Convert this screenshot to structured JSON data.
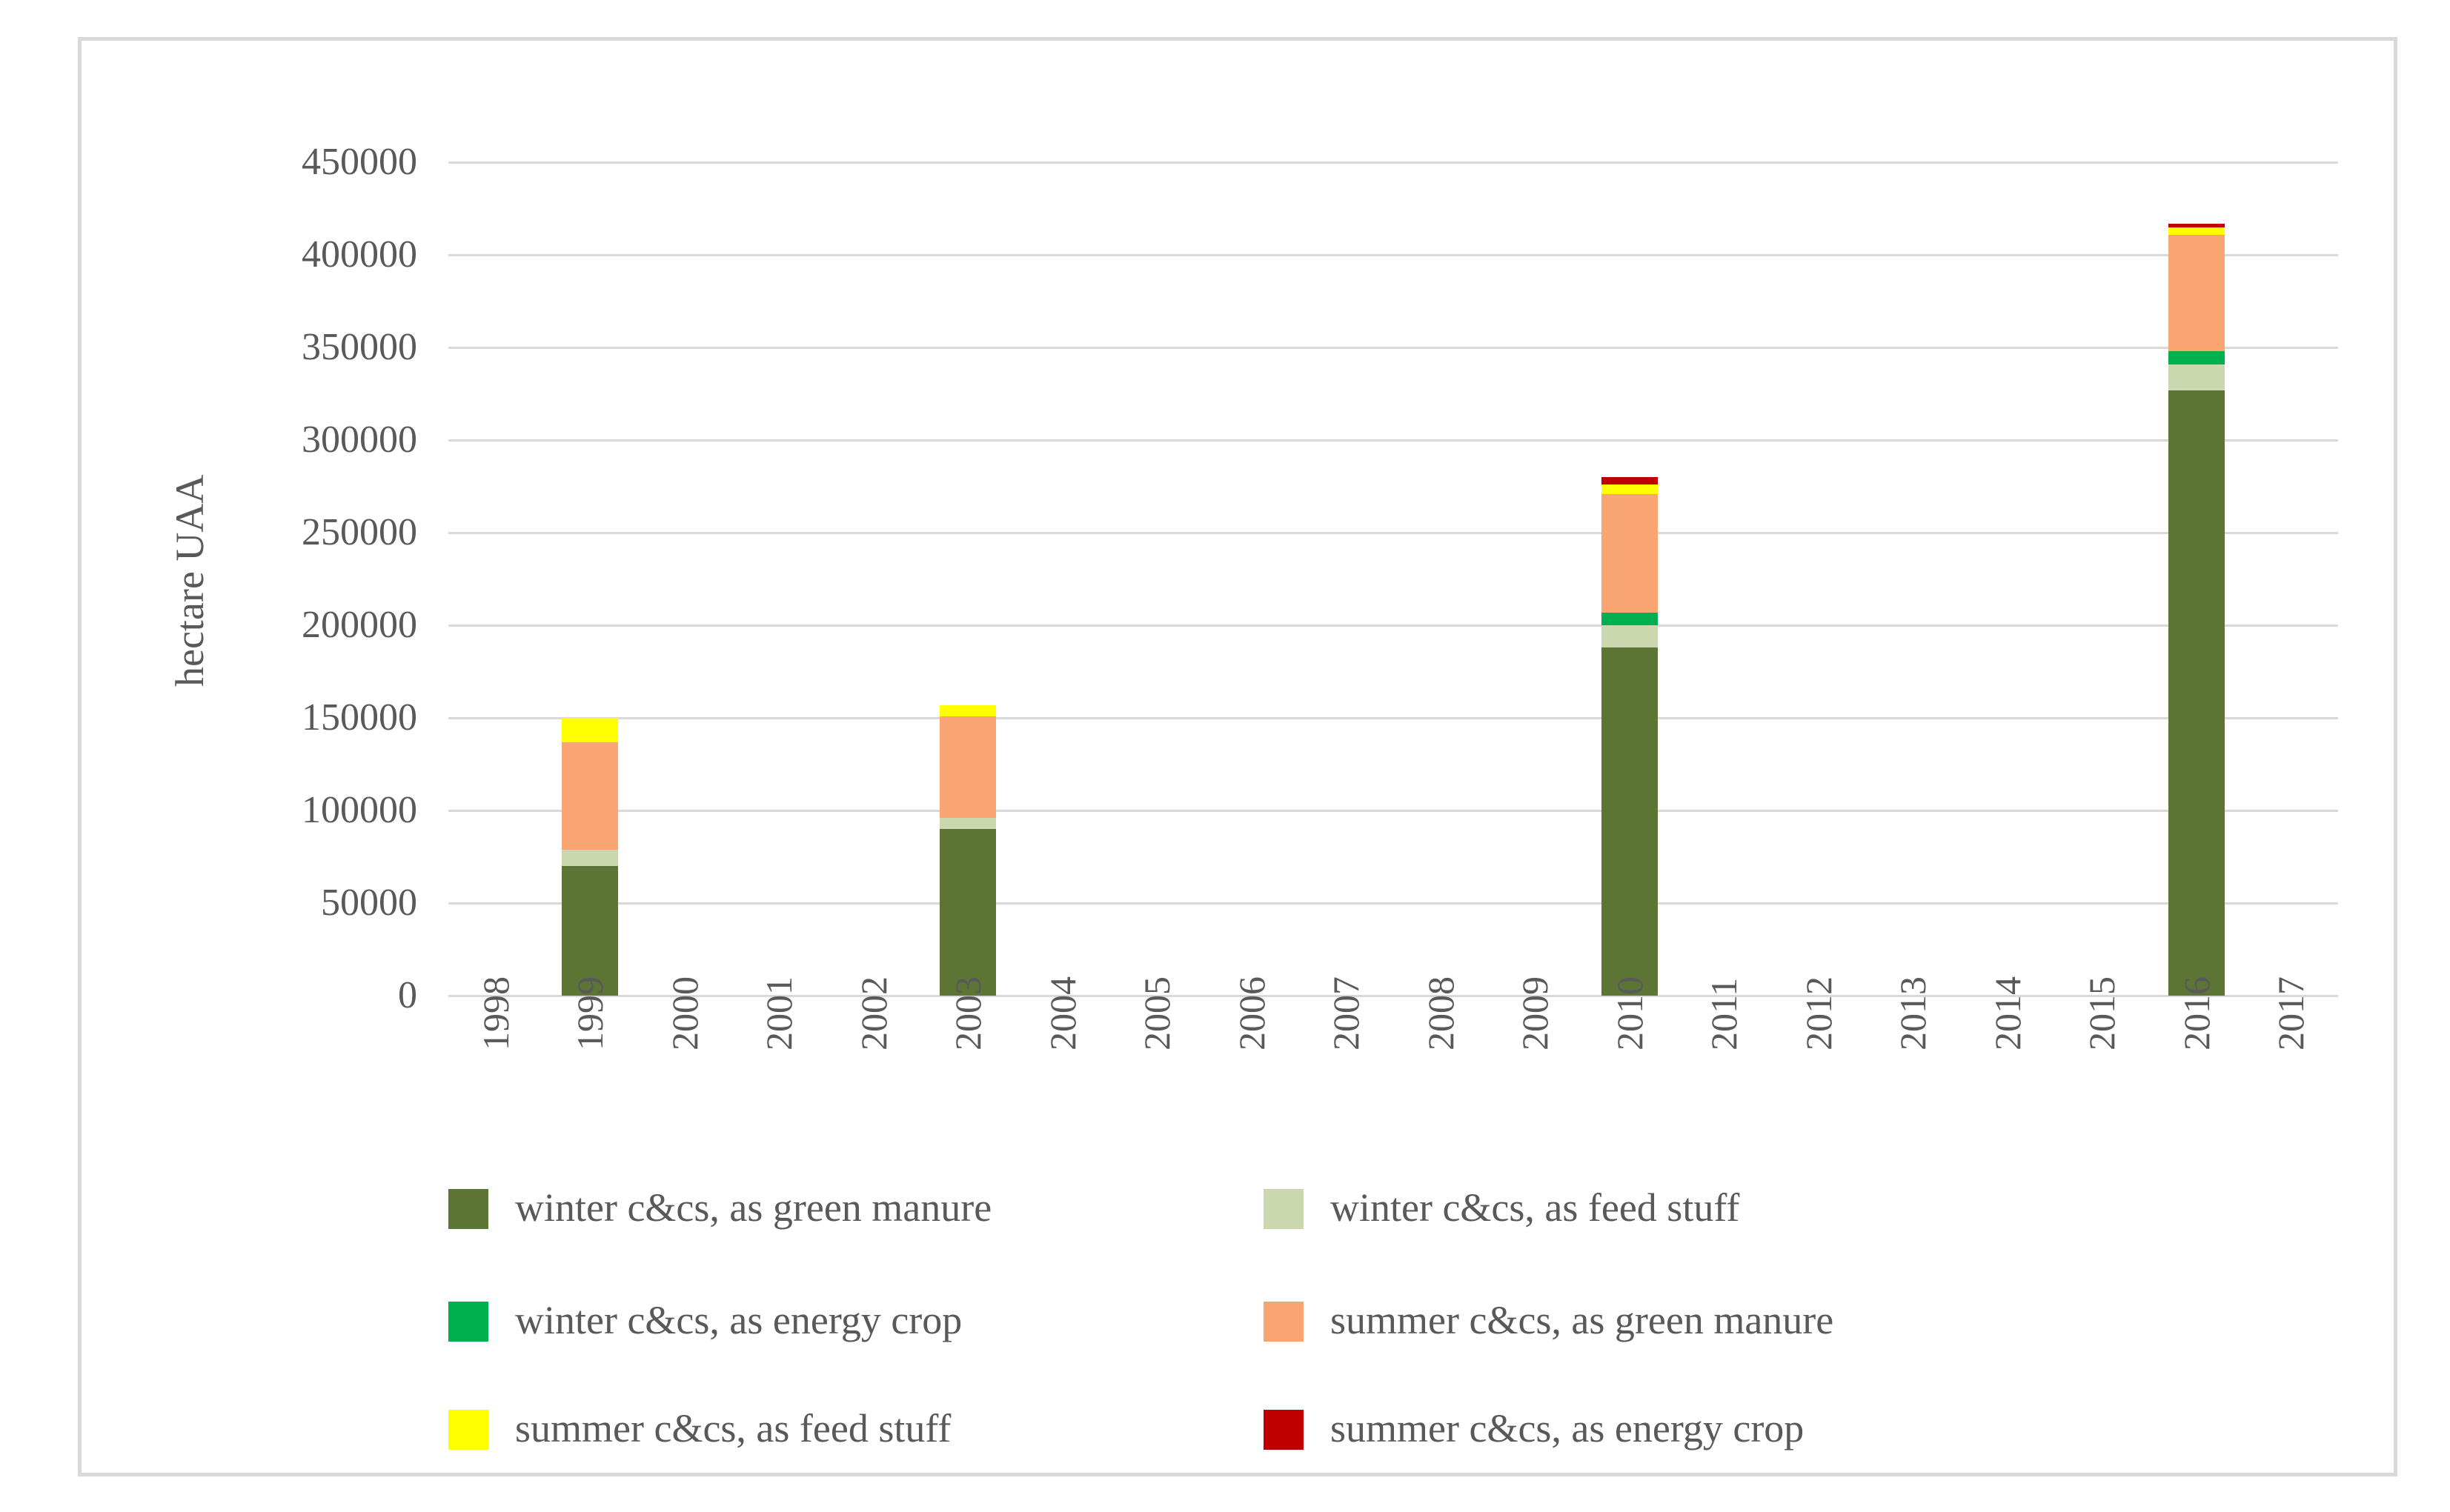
{
  "figure": {
    "y_axis_title": "hectare UAA"
  },
  "colors": {
    "grid": "#D9D9D9",
    "border": "#D9D9D9",
    "text": "#595959",
    "background": "#FFFFFF"
  },
  "chart_data": {
    "type": "bar",
    "stacked": true,
    "title": "",
    "xlabel": "",
    "ylabel": "hectare UAA",
    "ylim": [
      0,
      450000
    ],
    "y_tick_step": 50000,
    "y_tick_labels": [
      "0",
      "50000",
      "100000",
      "150000",
      "200000",
      "250000",
      "300000",
      "350000",
      "400000",
      "450000"
    ],
    "grid": "horizontal",
    "legend_position": "bottom",
    "legend_columns": 2,
    "categories": [
      "1998",
      "1999",
      "2000",
      "2001",
      "2002",
      "2003",
      "2004",
      "2005",
      "2006",
      "2007",
      "2008",
      "2009",
      "2010",
      "2011",
      "2012",
      "2013",
      "2014",
      "2015",
      "2016",
      "2017"
    ],
    "series": [
      {
        "name": "winter c&cs, as green manure",
        "color": "#5C7434",
        "values": [
          0,
          70000,
          0,
          0,
          0,
          90000,
          0,
          0,
          0,
          0,
          0,
          0,
          188000,
          0,
          0,
          0,
          0,
          0,
          327000,
          0
        ]
      },
      {
        "name": "winter c&cs, as feed stuff",
        "color": "#CBD8AF",
        "values": [
          0,
          9000,
          0,
          0,
          0,
          6000,
          0,
          0,
          0,
          0,
          0,
          0,
          12000,
          0,
          0,
          0,
          0,
          0,
          14000,
          0
        ]
      },
      {
        "name": "winter c&cs, as energy crop",
        "color": "#00B050",
        "values": [
          0,
          0,
          0,
          0,
          0,
          0,
          0,
          0,
          0,
          0,
          0,
          0,
          7000,
          0,
          0,
          0,
          0,
          0,
          7000,
          0
        ]
      },
      {
        "name": "summer c&cs, as green manure",
        "color": "#F8A572",
        "values": [
          0,
          58000,
          0,
          0,
          0,
          55000,
          0,
          0,
          0,
          0,
          0,
          0,
          64000,
          0,
          0,
          0,
          0,
          0,
          63000,
          0
        ]
      },
      {
        "name": "summer c&cs, as feed stuff",
        "color": "#FFFF00",
        "values": [
          0,
          13000,
          0,
          0,
          0,
          6000,
          0,
          0,
          0,
          0,
          0,
          0,
          5000,
          0,
          0,
          0,
          0,
          0,
          4000,
          0
        ]
      },
      {
        "name": "summer c&cs, as energy crop",
        "color": "#C00000",
        "values": [
          0,
          0,
          0,
          0,
          0,
          0,
          0,
          0,
          0,
          0,
          0,
          0,
          4000,
          0,
          0,
          0,
          0,
          0,
          2000,
          0
        ]
      }
    ]
  }
}
